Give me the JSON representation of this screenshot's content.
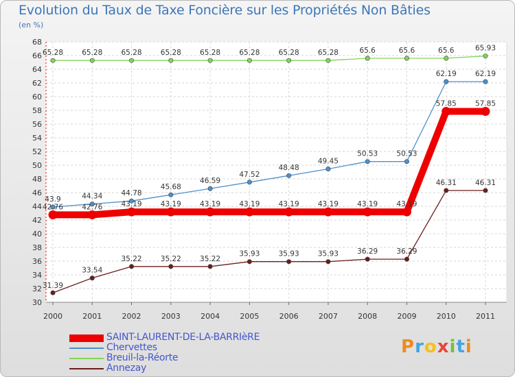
{
  "colors": {
    "title": "#3d76b8",
    "series": [
      "#ee0000",
      "#4d8fcc",
      "#82d45a",
      "#6b1c1c"
    ]
  },
  "chart_data": {
    "type": "line",
    "title": "Evolution du Taux de Taxe Foncière sur les Propriétés Non Bâties",
    "unit_label": "(en %)",
    "xlabel": "",
    "ylabel": "",
    "x": [
      "2000",
      "2001",
      "2002",
      "2003",
      "2004",
      "2005",
      "2006",
      "2007",
      "2008",
      "2009",
      "2010",
      "2011"
    ],
    "ylim": [
      30,
      68
    ],
    "yticks": [
      30,
      32,
      34,
      36,
      38,
      40,
      42,
      44,
      46,
      48,
      50,
      52,
      54,
      56,
      58,
      60,
      62,
      64,
      66,
      68
    ],
    "series": [
      {
        "name": "SAINT-LAURENT-DE-LA-BARRIèRE",
        "color": "#ee0000",
        "values": [
          42.76,
          42.76,
          43.19,
          43.19,
          43.19,
          43.19,
          43.19,
          43.19,
          43.19,
          43.19,
          57.85,
          57.85
        ],
        "labels": [
          "42.76",
          "42.76",
          "43.19",
          "43.19",
          "43.19",
          "43.19",
          "43.19",
          "43.19",
          "43.19",
          "43.19",
          "57.85",
          "57.85"
        ]
      },
      {
        "name": "Chervettes",
        "color": "#4d8fcc",
        "values": [
          43.9,
          44.34,
          44.78,
          45.68,
          46.59,
          47.52,
          48.48,
          49.45,
          50.53,
          50.53,
          62.19,
          62.19
        ],
        "labels": [
          "43.9",
          "44.34",
          "44.78",
          "45.68",
          "46.59",
          "47.52",
          "48.48",
          "49.45",
          "50.53",
          "50.53",
          "62.19",
          "62.19"
        ]
      },
      {
        "name": "Breuil-la-Réorte",
        "color": "#82d45a",
        "values": [
          65.28,
          65.28,
          65.28,
          65.28,
          65.28,
          65.28,
          65.28,
          65.28,
          65.6,
          65.6,
          65.6,
          65.93
        ],
        "labels": [
          "65.28",
          "65.28",
          "65.28",
          "65.28",
          "65.28",
          "65.28",
          "65.28",
          "65.28",
          "65.6",
          "65.6",
          "65.6",
          "65.93"
        ]
      },
      {
        "name": "Annezay",
        "color": "#6b1c1c",
        "values": [
          31.39,
          33.54,
          35.22,
          35.22,
          35.22,
          35.93,
          35.93,
          35.93,
          36.29,
          36.29,
          46.31,
          46.31
        ],
        "labels": [
          "31.39",
          "33.54",
          "35.22",
          "35.22",
          "35.22",
          "35.93",
          "35.93",
          "35.93",
          "36.29",
          "36.29",
          "46.31",
          "46.31"
        ]
      }
    ],
    "legend_position": "bottom-left",
    "grid": true
  },
  "logo": {
    "letters": [
      "P",
      "r",
      "o",
      "x",
      "i",
      "t",
      "i"
    ]
  }
}
